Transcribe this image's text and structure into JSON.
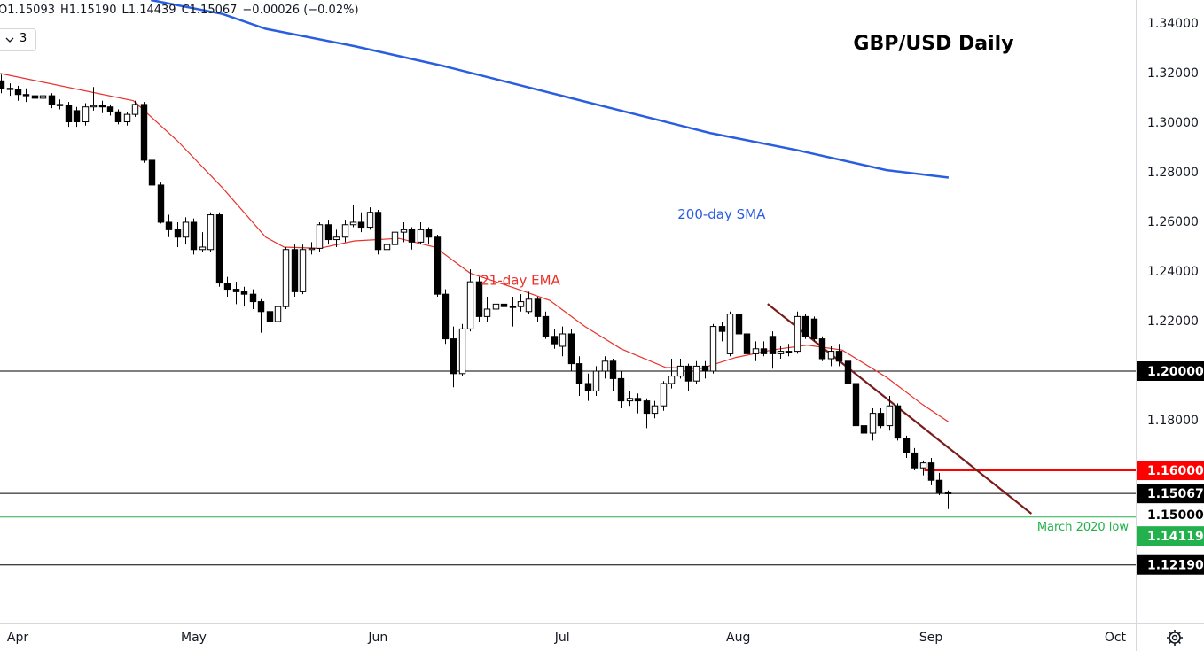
{
  "chart_data": {
    "type": "candlestick",
    "title": "GBP/USD Daily",
    "header": [
      "O1.15093",
      "H1.15190",
      "L1.14439",
      "C1.15067",
      "−0.00026 (−0.02%)"
    ],
    "dropdown": "3",
    "up_color": "#ffffff",
    "down_color": "#000000",
    "x": [
      -2,
      -1,
      0,
      1,
      2,
      3,
      4,
      5,
      6,
      7,
      8,
      9,
      10,
      11,
      12,
      13,
      14,
      15,
      16,
      17,
      18,
      19,
      20,
      21,
      22,
      23,
      24,
      25,
      26,
      27,
      28,
      29,
      30,
      31,
      32,
      33,
      34,
      35,
      36,
      37,
      38,
      39,
      40,
      41,
      42,
      43,
      44,
      45,
      46,
      47,
      48,
      49,
      50,
      51,
      52,
      53,
      54,
      55,
      56,
      57,
      58,
      59,
      60,
      61,
      62,
      63,
      64,
      65,
      66,
      67,
      68,
      69,
      70,
      71,
      72,
      73,
      74,
      75,
      76,
      77,
      78,
      79,
      80,
      81,
      82,
      83,
      84,
      85,
      86,
      87,
      88,
      89,
      90,
      91,
      92,
      93,
      94,
      95,
      96,
      97,
      98,
      99,
      100,
      101,
      102,
      103,
      104,
      105,
      106,
      107,
      108,
      109,
      110,
      111
    ],
    "open": [
      1.317,
      1.314,
      1.3135,
      1.3115,
      1.311,
      1.31,
      1.311,
      1.3075,
      1.307,
      1.305,
      1.3005,
      1.3065,
      1.307,
      1.3065,
      1.3045,
      1.3005,
      1.3035,
      1.3075,
      1.285,
      1.275,
      1.26,
      1.257,
      1.254,
      1.26,
      1.249,
      1.249,
      1.263,
      1.2355,
      1.233,
      1.232,
      1.231,
      1.228,
      1.224,
      1.22,
      1.226,
      1.249,
      1.232,
      1.249,
      1.2495,
      1.259,
      1.253,
      1.254,
      1.259,
      1.26,
      1.258,
      1.264,
      1.249,
      1.251,
      1.256,
      1.257,
      1.252,
      1.257,
      1.254,
      1.231,
      1.213,
      1.199,
      1.217,
      1.236,
      1.222,
      1.225,
      1.227,
      1.226,
      1.226,
      1.224,
      1.229,
      1.222,
      1.214,
      1.21,
      1.215,
      1.203,
      1.195,
      1.192,
      1.2,
      1.204,
      1.197,
      1.188,
      1.189,
      1.188,
      1.183,
      1.186,
      1.195,
      1.198,
      1.202,
      1.196,
      1.202,
      1.2,
      1.218,
      1.207,
      1.223,
      1.215,
      1.207,
      1.209,
      1.214,
      1.207,
      1.208,
      1.208,
      1.222,
      1.221,
      1.213,
      1.205,
      1.208,
      1.204,
      1.195,
      1.178,
      1.175,
      1.183,
      1.178,
      1.186,
      1.173,
      1.167,
      1.161,
      1.163,
      1.156,
      1.15093
    ],
    "high": [
      1.3195,
      1.316,
      1.315,
      1.314,
      1.313,
      1.3135,
      1.312,
      1.3095,
      1.3085,
      1.3065,
      1.308,
      1.3145,
      1.309,
      1.3075,
      1.3055,
      1.3045,
      1.309,
      1.3085,
      1.287,
      1.276,
      1.263,
      1.26,
      1.262,
      1.2615,
      1.256,
      1.264,
      1.264,
      1.238,
      1.236,
      1.234,
      1.233,
      1.229,
      1.226,
      1.229,
      1.25,
      1.251,
      1.251,
      1.252,
      1.26,
      1.261,
      1.257,
      1.261,
      1.267,
      1.264,
      1.266,
      1.265,
      1.254,
      1.259,
      1.26,
      1.258,
      1.26,
      1.258,
      1.255,
      1.233,
      1.218,
      1.219,
      1.241,
      1.238,
      1.23,
      1.232,
      1.229,
      1.23,
      1.231,
      1.232,
      1.23,
      1.224,
      1.217,
      1.218,
      1.217,
      1.206,
      1.199,
      1.202,
      1.206,
      1.205,
      1.2,
      1.192,
      1.191,
      1.189,
      1.188,
      1.196,
      1.205,
      1.205,
      1.203,
      1.204,
      1.204,
      1.219,
      1.22,
      1.224,
      1.2295,
      1.222,
      1.212,
      1.212,
      1.216,
      1.21,
      1.211,
      1.224,
      1.223,
      1.222,
      1.214,
      1.21,
      1.211,
      1.205,
      1.197,
      1.181,
      1.185,
      1.185,
      1.19,
      1.187,
      1.174,
      1.169,
      1.164,
      1.165,
      1.159,
      1.1519
    ],
    "low": [
      1.312,
      1.311,
      1.309,
      1.3085,
      1.308,
      1.3085,
      1.306,
      1.3055,
      1.2985,
      1.2985,
      1.299,
      1.305,
      1.304,
      1.303,
      1.2995,
      1.299,
      1.3025,
      1.284,
      1.2735,
      1.2595,
      1.254,
      1.25,
      1.251,
      1.247,
      1.248,
      1.248,
      1.234,
      1.23,
      1.227,
      1.226,
      1.225,
      1.2155,
      1.216,
      1.219,
      1.225,
      1.23,
      1.231,
      1.247,
      1.248,
      1.251,
      1.25,
      1.252,
      1.258,
      1.256,
      1.257,
      1.247,
      1.246,
      1.249,
      1.252,
      1.249,
      1.251,
      1.251,
      1.23,
      1.211,
      1.1935,
      1.198,
      1.216,
      1.22,
      1.22,
      1.223,
      1.224,
      1.218,
      1.224,
      1.223,
      1.22,
      1.213,
      1.209,
      1.206,
      1.2,
      1.19,
      1.188,
      1.19,
      1.197,
      1.192,
      1.185,
      1.186,
      1.183,
      1.177,
      1.181,
      1.184,
      1.193,
      1.197,
      1.192,
      1.195,
      1.197,
      1.199,
      1.212,
      1.206,
      1.214,
      1.206,
      1.204,
      1.206,
      1.201,
      1.205,
      1.206,
      1.207,
      1.213,
      1.212,
      1.204,
      1.202,
      1.202,
      1.193,
      1.177,
      1.173,
      1.172,
      1.177,
      1.176,
      1.172,
      1.165,
      1.16,
      1.158,
      1.154,
      1.15,
      1.14439
    ],
    "close": [
      1.314,
      1.3135,
      1.3115,
      1.311,
      1.31,
      1.311,
      1.3075,
      1.307,
      1.3005,
      1.3005,
      1.3065,
      1.307,
      1.3065,
      1.3045,
      1.3005,
      1.3035,
      1.3075,
      1.285,
      1.275,
      1.26,
      1.257,
      1.254,
      1.26,
      1.249,
      1.25,
      1.263,
      1.2355,
      1.233,
      1.232,
      1.231,
      1.228,
      1.224,
      1.22,
      1.226,
      1.249,
      1.232,
      1.249,
      1.2495,
      1.259,
      1.253,
      1.254,
      1.259,
      1.26,
      1.258,
      1.264,
      1.249,
      1.251,
      1.256,
      1.257,
      1.252,
      1.257,
      1.254,
      1.231,
      1.213,
      1.199,
      1.217,
      1.236,
      1.222,
      1.225,
      1.227,
      1.226,
      1.226,
      1.228,
      1.229,
      1.222,
      1.214,
      1.211,
      1.215,
      1.203,
      1.195,
      1.192,
      1.2,
      1.204,
      1.197,
      1.188,
      1.189,
      1.188,
      1.183,
      1.186,
      1.195,
      1.198,
      1.202,
      1.196,
      1.202,
      1.2,
      1.218,
      1.216,
      1.223,
      1.215,
      1.207,
      1.209,
      1.207,
      1.207,
      1.208,
      1.208,
      1.222,
      1.214,
      1.213,
      1.205,
      1.208,
      1.204,
      1.195,
      1.178,
      1.175,
      1.183,
      1.178,
      1.186,
      1.173,
      1.167,
      1.161,
      1.163,
      1.156,
      1.151,
      1.15067
    ],
    "xlim": [
      -2.12,
      133.44
    ],
    "xticks": [
      {
        "value": 0,
        "label": "Apr"
      },
      {
        "value": 21,
        "label": "May"
      },
      {
        "value": 43,
        "label": "Jun"
      },
      {
        "value": 65,
        "label": "Jul"
      },
      {
        "value": 86,
        "label": "Aug"
      },
      {
        "value": 109,
        "label": "Sep"
      },
      {
        "value": 131,
        "label": "Oct"
      }
    ],
    "ylim": [
      1.0986,
      1.3496
    ],
    "yticks": [
      {
        "value": 1.34,
        "label": "1.34000"
      },
      {
        "value": 1.32,
        "label": "1.32000"
      },
      {
        "value": 1.3,
        "label": "1.30000"
      },
      {
        "value": 1.28,
        "label": "1.28000"
      },
      {
        "value": 1.26,
        "label": "1.26000"
      },
      {
        "value": 1.24,
        "label": "1.24000"
      },
      {
        "value": 1.22,
        "label": "1.22000"
      },
      {
        "value": 1.18,
        "label": "1.18000"
      }
    ],
    "lines": [
      {
        "name": "21-day EMA",
        "color": "#e8322a",
        "label_at": [
          60,
          1.2365
        ],
        "x": [
          -2.1,
          13.8,
          19,
          24.4,
          29.6,
          31.8,
          36,
          40.2,
          45.5,
          49.8,
          54,
          59.3,
          63.5,
          67.7,
          72,
          77.3,
          81.5,
          85.7,
          90,
          94.2,
          98.4,
          103.7,
          108,
          111.1
        ],
        "values": [
          1.32,
          1.309,
          1.293,
          1.274,
          1.254,
          1.25,
          1.2495,
          1.2525,
          1.2535,
          1.25,
          1.2395,
          1.2335,
          1.2285,
          1.218,
          1.209,
          1.2015,
          1.201,
          1.2055,
          1.2085,
          1.2105,
          1.2085,
          1.1975,
          1.1865,
          1.1795
        ]
      },
      {
        "name": "200-day SMA",
        "color": "#2a5ee0",
        "label_at": [
          84,
          1.263
        ],
        "x": [
          15.9,
          24.4,
          29.6,
          40.2,
          50.8,
          61.4,
          72,
          82.6,
          93.1,
          103.7,
          111.1
        ],
        "values": [
          1.3496,
          1.344,
          1.338,
          1.331,
          1.323,
          1.314,
          1.305,
          1.296,
          1.289,
          1.281,
          1.278
        ]
      }
    ],
    "trendline": {
      "color": "#7b1c1c",
      "x": [
        89.5,
        121
      ],
      "values": [
        1.2271,
        1.1425
      ]
    },
    "levels": [
      {
        "value": 1.2,
        "label": "1.20000",
        "color": "#000000",
        "from": -2.12
      },
      {
        "value": 1.16,
        "label": "1.16000",
        "color": "#ff0000",
        "from": 108.2
      },
      {
        "value": 1.15067,
        "label": "1.15067",
        "color": "#000000",
        "from": -2.12
      },
      {
        "value": 1.15,
        "label": "1.15000",
        "color": "#ffffff",
        "from": 133.44
      },
      {
        "value": 1.14119,
        "label": "1.14119",
        "color": "#22b14c",
        "from": -2.12,
        "name": "March 2020 low"
      },
      {
        "value": 1.1219,
        "label": "1.12190",
        "color": "#000000",
        "from": -2.12
      }
    ]
  }
}
